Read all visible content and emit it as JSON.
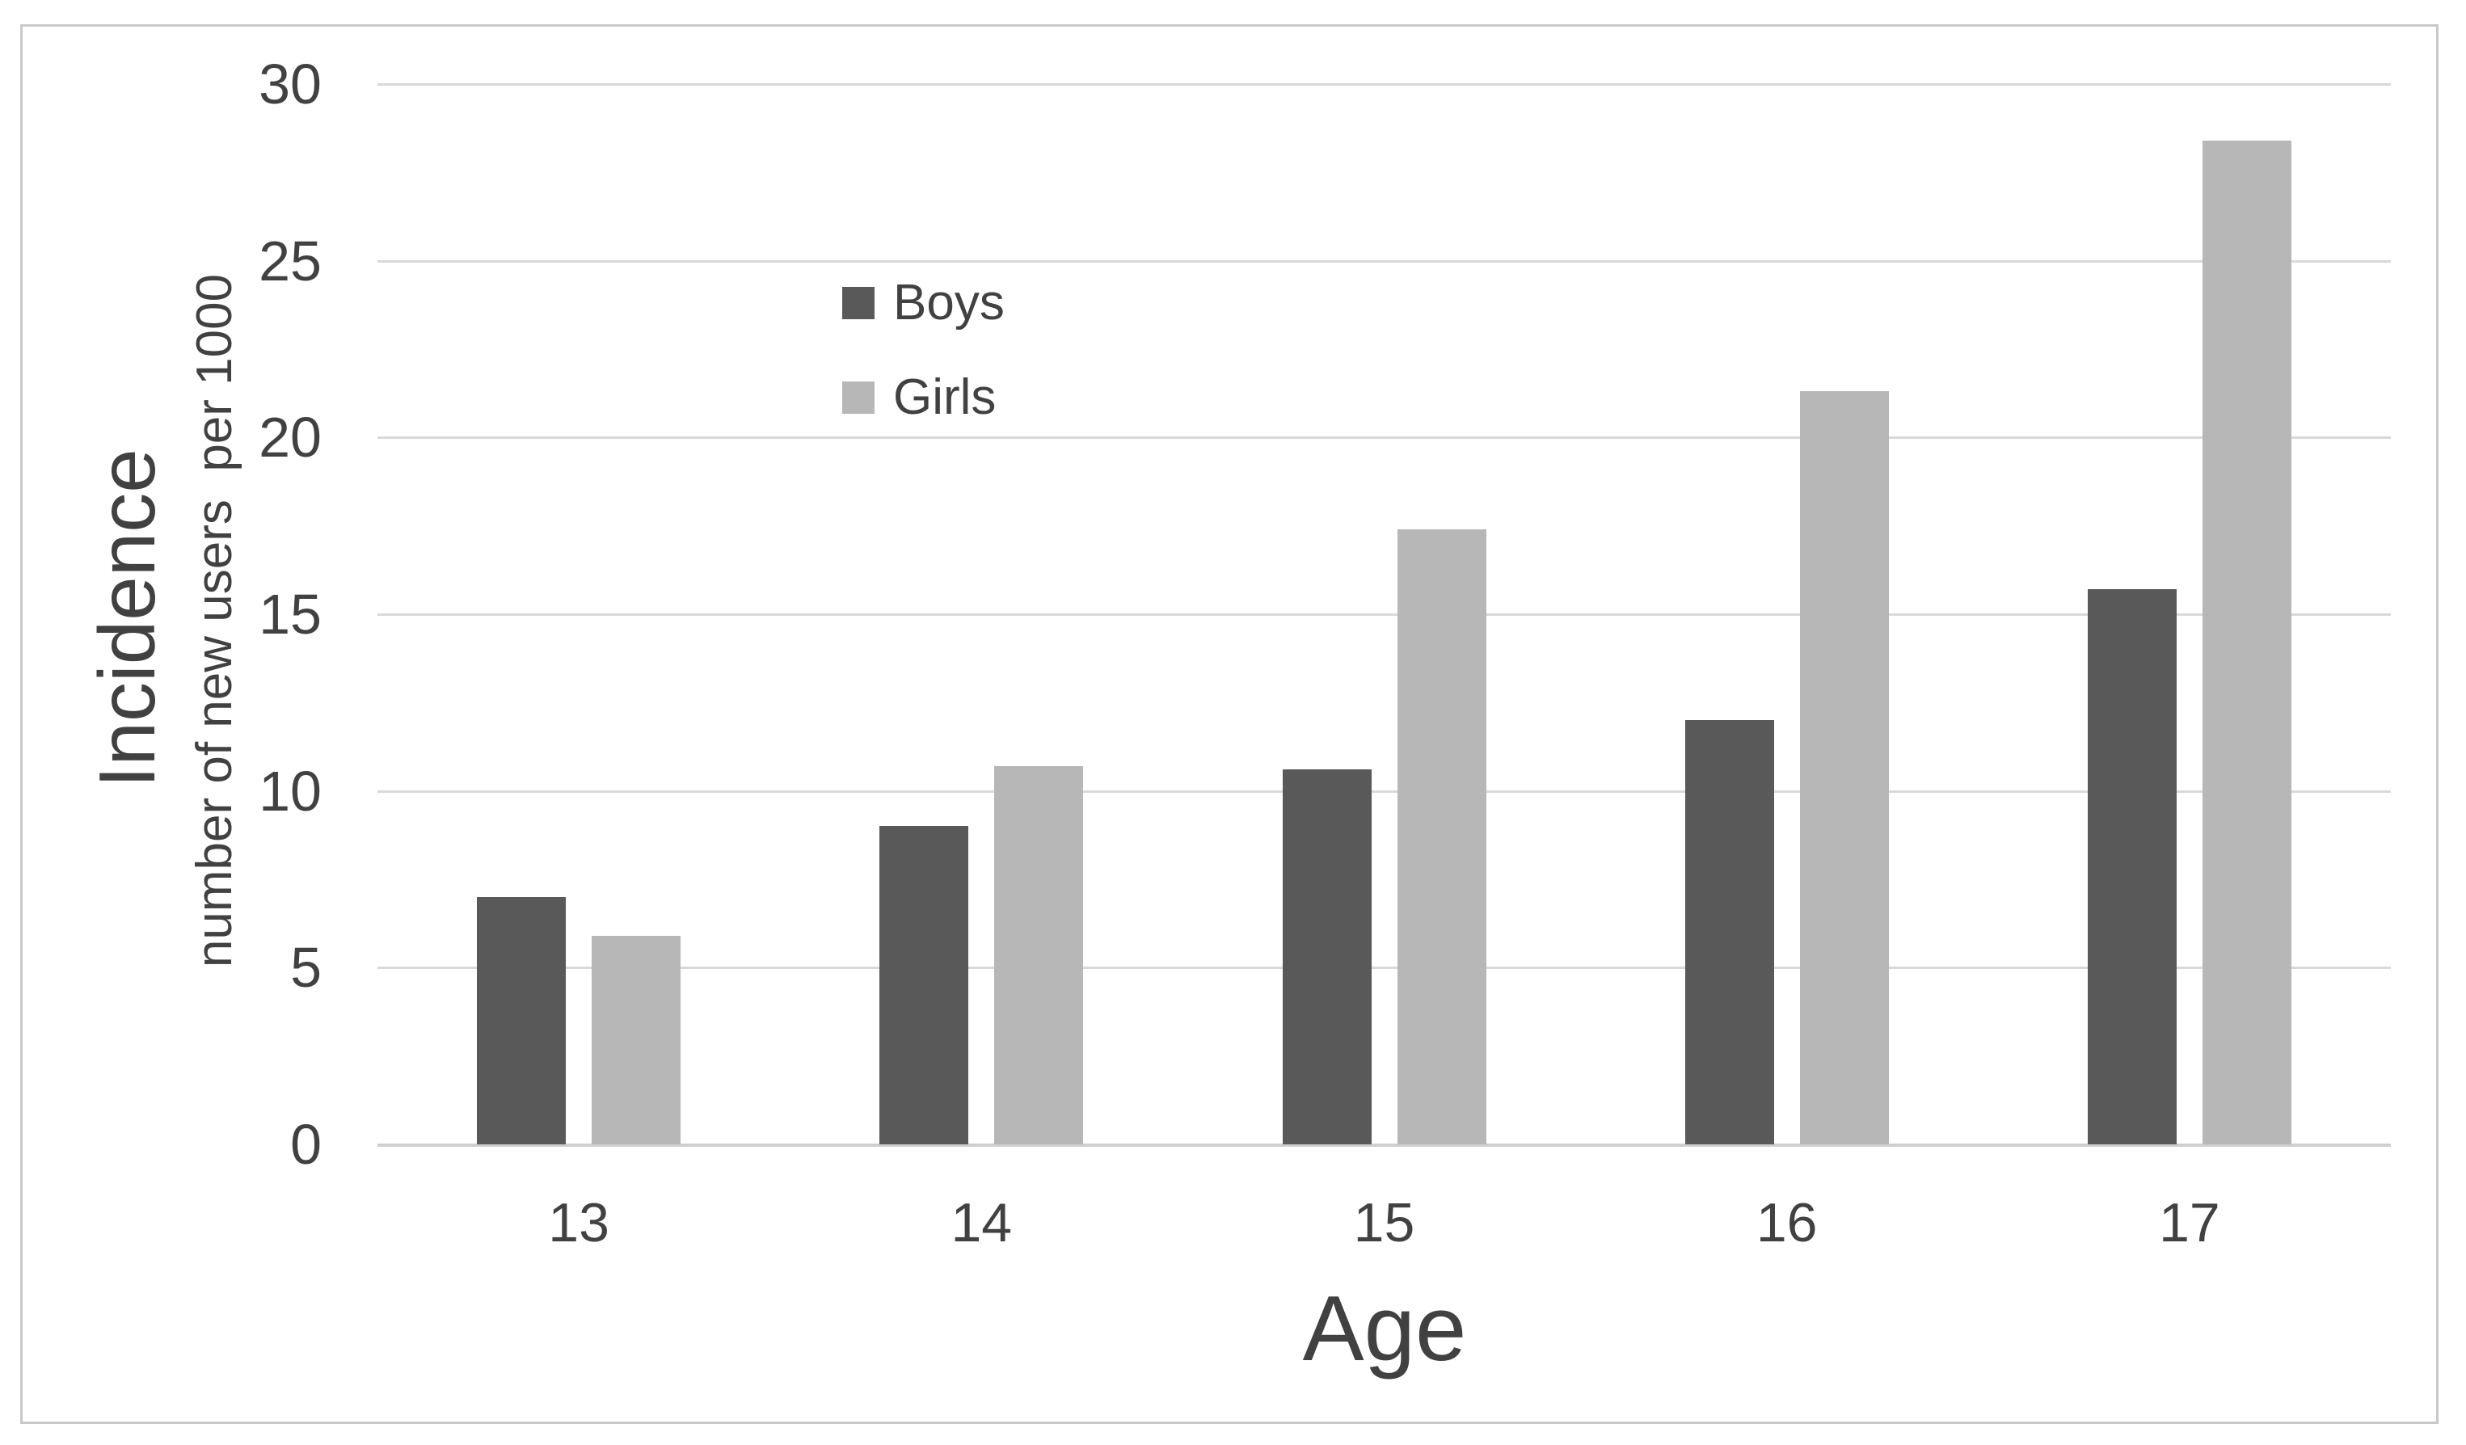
{
  "chart_data": {
    "type": "bar",
    "title": "",
    "categories": [
      "13",
      "14",
      "15",
      "16",
      "17"
    ],
    "series": [
      {
        "name": "Boys",
        "color": "#595959",
        "values": [
          7.0,
          9.0,
          10.6,
          12.0,
          15.7
        ]
      },
      {
        "name": "Girls",
        "color": "#b7b7b7",
        "values": [
          5.9,
          10.7,
          17.4,
          21.3,
          28.4
        ]
      }
    ],
    "xlabel": "Age",
    "ylabel": "Incidence",
    "ylabel_sub": "number of new users  per 1000",
    "ylim": [
      0,
      30
    ],
    "yticks": [
      0,
      5,
      10,
      15,
      20,
      25,
      30
    ],
    "xticks": [
      "13",
      "14",
      "15",
      "16",
      "17"
    ],
    "grid": true,
    "legend_position": "upper-left-of-center",
    "colors": {
      "background": "#ffffff",
      "frame_border": "#c9c9c9",
      "gridline": "#d9d9d9",
      "axis_line": "#cfcfcf",
      "text": "#414141"
    }
  }
}
